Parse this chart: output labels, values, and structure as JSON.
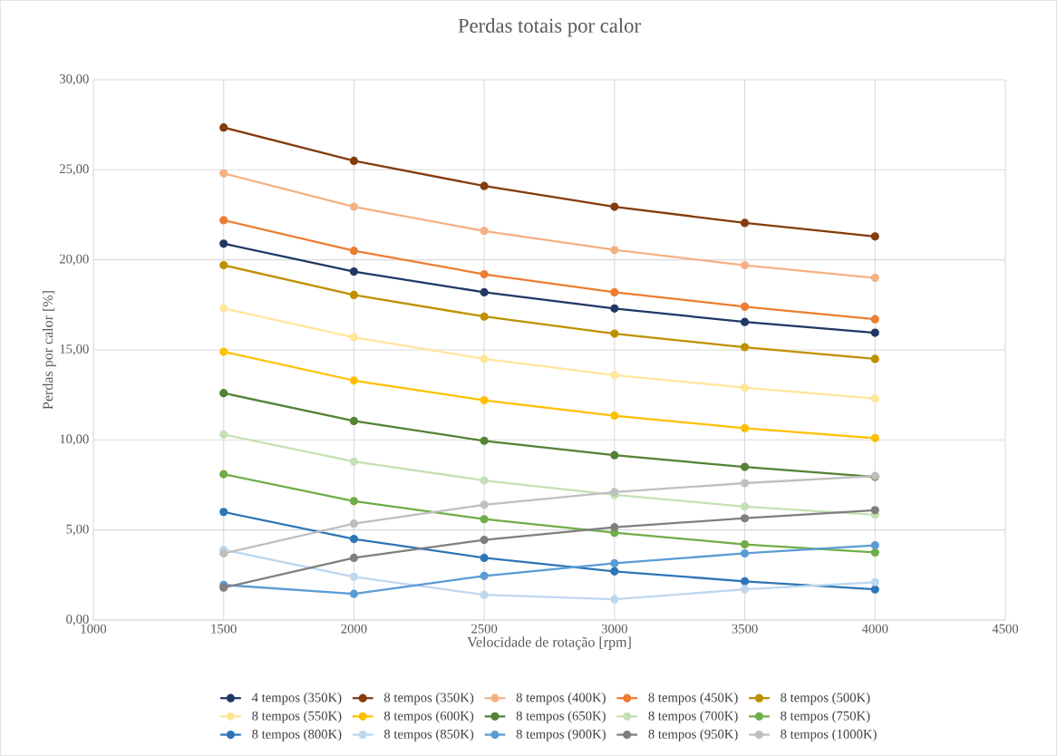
{
  "chart_data": {
    "type": "line",
    "title": "Perdas totais por calor",
    "xlabel": "Velocidade de rotação [rpm]",
    "ylabel": "Perdas por calor [%]",
    "x": [
      1500,
      2000,
      2500,
      3000,
      3500,
      4000
    ],
    "xlim": [
      1000,
      4500
    ],
    "xticks": [
      1000,
      1500,
      2000,
      2500,
      3000,
      3500,
      4000,
      4500
    ],
    "ylim": [
      0,
      30
    ],
    "yticks": [
      {
        "value": 0,
        "label": "0,00"
      },
      {
        "value": 5,
        "label": "5,00"
      },
      {
        "value": 10,
        "label": "10,00"
      },
      {
        "value": 15,
        "label": "15,00"
      },
      {
        "value": 20,
        "label": "20,00"
      },
      {
        "value": 25,
        "label": "25,00"
      },
      {
        "value": 30,
        "label": "30,00"
      }
    ],
    "grid": true,
    "legend": "bottom",
    "marker": "circle",
    "line_style": "solid",
    "series": [
      {
        "name": "4 tempos (350K)",
        "color": "#203864",
        "values": [
          20.9,
          19.35,
          18.2,
          17.3,
          16.55,
          15.95
        ]
      },
      {
        "name": "8 tempos (350K)",
        "color": "#843c0c",
        "values": [
          27.35,
          25.5,
          24.1,
          22.95,
          22.05,
          21.3
        ]
      },
      {
        "name": "8 tempos (400K)",
        "color": "#f4b183",
        "values": [
          24.8,
          22.95,
          21.6,
          20.55,
          19.7,
          19.0
        ]
      },
      {
        "name": "8 tempos (450K)",
        "color": "#ed7d31",
        "values": [
          22.2,
          20.5,
          19.2,
          18.2,
          17.4,
          16.7
        ]
      },
      {
        "name": "8 tempos (500K)",
        "color": "#bf9000",
        "values": [
          19.7,
          18.05,
          16.85,
          15.9,
          15.15,
          14.5
        ]
      },
      {
        "name": "8 tempos (550K)",
        "color": "#ffe699",
        "values": [
          17.3,
          15.7,
          14.5,
          13.6,
          12.9,
          12.3
        ]
      },
      {
        "name": "8 tempos (600K)",
        "color": "#ffc000",
        "values": [
          14.9,
          13.3,
          12.2,
          11.35,
          10.65,
          10.1
        ]
      },
      {
        "name": "8 tempos (650K)",
        "color": "#548235",
        "values": [
          12.6,
          11.05,
          9.95,
          9.15,
          8.5,
          7.95
        ]
      },
      {
        "name": "8 tempos (700K)",
        "color": "#c5e0b4",
        "values": [
          10.3,
          8.8,
          7.75,
          6.95,
          6.3,
          5.85
        ]
      },
      {
        "name": "8 tempos (750K)",
        "color": "#70ad47",
        "values": [
          8.1,
          6.6,
          5.6,
          4.85,
          4.2,
          3.75
        ]
      },
      {
        "name": "8 tempos (800K)",
        "color": "#2e75b6",
        "values": [
          6.0,
          4.5,
          3.45,
          2.7,
          2.15,
          1.7
        ]
      },
      {
        "name": "8 tempos (850K)",
        "color": "#bdd7ee",
        "values": [
          3.9,
          2.4,
          1.4,
          1.15,
          1.7,
          2.1
        ]
      },
      {
        "name": "8 tempos (900K)",
        "color": "#5b9bd5",
        "values": [
          1.95,
          1.45,
          2.45,
          3.15,
          3.7,
          4.15
        ]
      },
      {
        "name": "8 tempos (950K)",
        "color": "#7f7f7f",
        "values": [
          1.8,
          3.45,
          4.45,
          5.15,
          5.65,
          6.1
        ]
      },
      {
        "name": "8 tempos (1000K)",
        "color": "#bfbfbf",
        "values": [
          3.7,
          5.35,
          6.4,
          7.1,
          7.6,
          8.0
        ]
      }
    ]
  }
}
